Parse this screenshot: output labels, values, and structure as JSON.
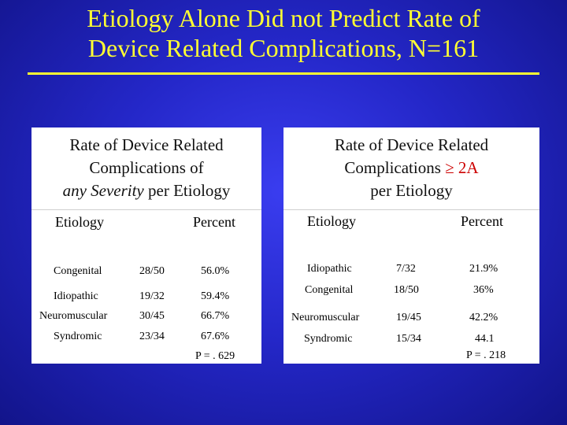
{
  "title": {
    "line1": "Etiology Alone Did not Predict Rate of",
    "line2": "Device Related Complications, N=161"
  },
  "left_table": {
    "caption_line1": "Rate of Device Related",
    "caption_line2": "Complications of",
    "caption_line3_em": "any Severity",
    "caption_line3_rest": " per Etiology",
    "header_etiology": "Etiology",
    "header_percent": "Percent",
    "rows": [
      {
        "etiology": "Congenital",
        "count": "28/50",
        "percent": "56.0%"
      },
      {
        "etiology": "Idiopathic",
        "count": "19/32",
        "percent": "59.4%"
      },
      {
        "etiology": "Neuromuscular",
        "count": "30/45",
        "percent": "66.7%"
      },
      {
        "etiology": "Syndromic",
        "count": "23/34",
        "percent": "67.6%"
      }
    ],
    "p_value": "P = . 629"
  },
  "right_table": {
    "caption_line1": "Rate of Device Related",
    "caption_line2_pre": "Complications ",
    "caption_line2_mark": "≥ 2A",
    "caption_line3": "per Etiology",
    "header_etiology": "Etiology",
    "header_percent": "Percent",
    "rows": [
      {
        "etiology": "Idiopathic",
        "count": "7/32",
        "percent": "21.9%"
      },
      {
        "etiology": "Congenital",
        "count": "18/50",
        "percent": "36%"
      },
      {
        "etiology": "Neuromuscular",
        "count": "19/45",
        "percent": "42.2%"
      },
      {
        "etiology": "Syndromic",
        "count": "15/34",
        "percent": "44.1"
      }
    ],
    "p_value": "P = . 218"
  },
  "colors": {
    "title": "#ffff33",
    "background": "#2427c8",
    "highlight": "#cc0000"
  }
}
